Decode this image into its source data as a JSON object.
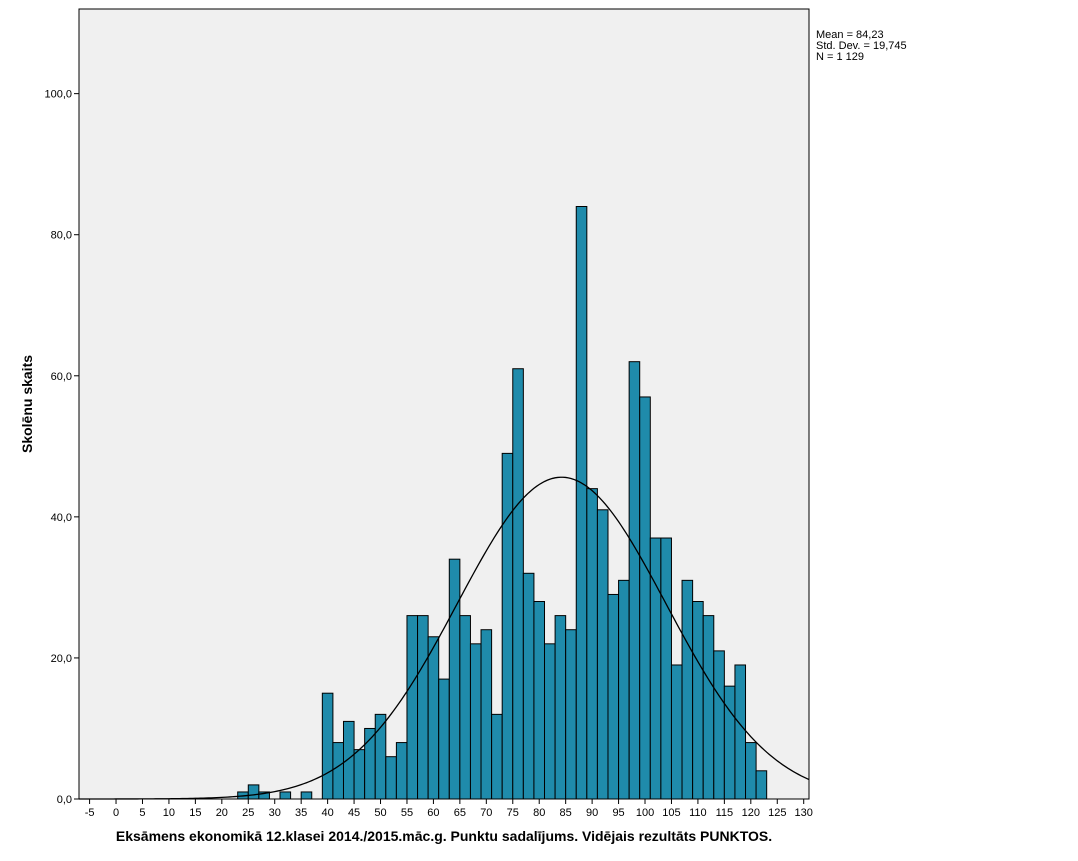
{
  "chart_data": {
    "type": "bar",
    "subtype": "histogram",
    "xlabel": "Eksāmens ekonomikā 12.klasei 2014./2015.māc.g. Punktu sadalījums. Vidējais rezultāts PUNKTOS.",
    "ylabel": "Skolēnu skaits",
    "xlim": [
      -7,
      131
    ],
    "ylim": [
      0,
      112
    ],
    "x_ticks": [
      -5,
      0,
      5,
      10,
      15,
      20,
      25,
      30,
      35,
      40,
      45,
      50,
      55,
      60,
      65,
      70,
      75,
      80,
      85,
      90,
      95,
      100,
      105,
      110,
      115,
      120,
      125,
      130
    ],
    "x_tick_labels": [
      "-5",
      "0",
      "5",
      "10",
      "15",
      "20",
      "25",
      "30",
      "35",
      "40",
      "45",
      "50",
      "55",
      "60",
      "65",
      "70",
      "75",
      "80",
      "85",
      "90",
      "95",
      "100",
      "105",
      "110",
      "115",
      "120",
      "125",
      "130"
    ],
    "y_ticks": [
      0,
      20,
      40,
      60,
      80,
      100
    ],
    "y_tick_labels": [
      "0,0",
      "20,0",
      "40,0",
      "60,0",
      "80,0",
      "100,0"
    ],
    "bin_width": 2,
    "bins": [
      {
        "start": 23,
        "count": 1
      },
      {
        "start": 25,
        "count": 2
      },
      {
        "start": 27,
        "count": 1
      },
      {
        "start": 31,
        "count": 1
      },
      {
        "start": 35,
        "count": 1
      },
      {
        "start": 39,
        "count": 15
      },
      {
        "start": 41,
        "count": 8
      },
      {
        "start": 43,
        "count": 11
      },
      {
        "start": 45,
        "count": 7
      },
      {
        "start": 47,
        "count": 10
      },
      {
        "start": 49,
        "count": 12
      },
      {
        "start": 51,
        "count": 6
      },
      {
        "start": 53,
        "count": 8
      },
      {
        "start": 55,
        "count": 26
      },
      {
        "start": 57,
        "count": 26
      },
      {
        "start": 59,
        "count": 23
      },
      {
        "start": 61,
        "count": 17
      },
      {
        "start": 63,
        "count": 34
      },
      {
        "start": 65,
        "count": 26
      },
      {
        "start": 67,
        "count": 22
      },
      {
        "start": 69,
        "count": 24
      },
      {
        "start": 71,
        "count": 12
      },
      {
        "start": 73,
        "count": 49
      },
      {
        "start": 75,
        "count": 61
      },
      {
        "start": 77,
        "count": 32
      },
      {
        "start": 79,
        "count": 28
      },
      {
        "start": 81,
        "count": 22
      },
      {
        "start": 83,
        "count": 26
      },
      {
        "start": 85,
        "count": 24
      },
      {
        "start": 87,
        "count": 84
      },
      {
        "start": 89,
        "count": 44
      },
      {
        "start": 91,
        "count": 41
      },
      {
        "start": 93,
        "count": 29
      },
      {
        "start": 95,
        "count": 31
      },
      {
        "start": 97,
        "count": 62
      },
      {
        "start": 99,
        "count": 57
      },
      {
        "start": 101,
        "count": 37
      },
      {
        "start": 103,
        "count": 37
      },
      {
        "start": 105,
        "count": 19
      },
      {
        "start": 107,
        "count": 31
      },
      {
        "start": 109,
        "count": 28
      },
      {
        "start": 111,
        "count": 26
      },
      {
        "start": 113,
        "count": 21
      },
      {
        "start": 115,
        "count": 16
      },
      {
        "start": 117,
        "count": 19
      },
      {
        "start": 119,
        "count": 8
      },
      {
        "start": 121,
        "count": 4
      }
    ],
    "normal_curve": {
      "mean": 84.23,
      "std_dev": 19.745,
      "n": 1129
    },
    "stats_text": {
      "mean": "Mean = 84,23",
      "std_dev": "Std. Dev. = 19,745",
      "n": "N = 1 129"
    },
    "grid": false,
    "colors": {
      "bar_fill": "#1f8bab",
      "bar_stroke": "#000000",
      "plot_background": "#f0f0f0",
      "curve": "#000000"
    }
  }
}
